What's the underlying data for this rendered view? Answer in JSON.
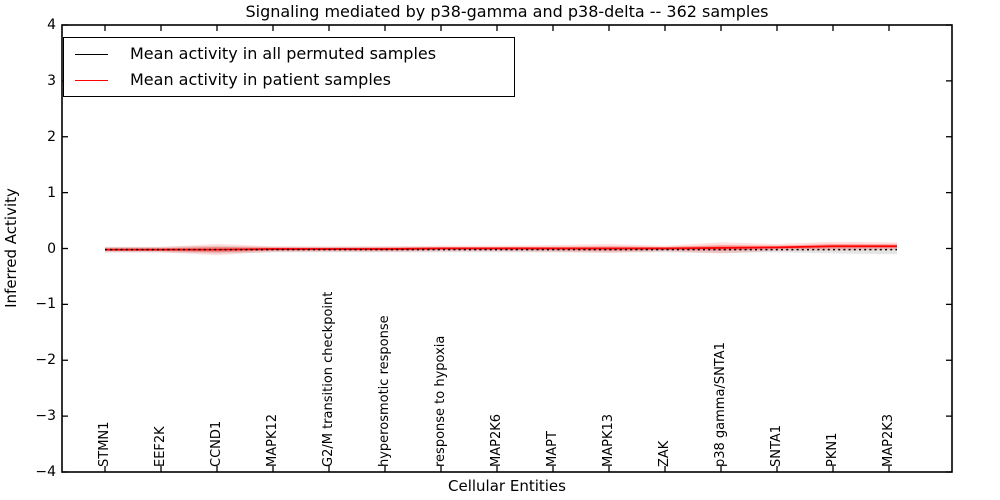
{
  "chart_data": {
    "type": "line",
    "title": "Signaling mediated by p38-gamma and p38-delta -- 362 samples",
    "xlabel": "Cellular Entities",
    "ylabel": "Inferred Activity",
    "ylim": [
      -4,
      4
    ],
    "yticks": [
      4,
      3,
      2,
      1,
      0,
      -1,
      -2,
      -3,
      -4
    ],
    "ytick_labels": [
      "4",
      "3",
      "2",
      "1",
      "0",
      "−1",
      "−2",
      "−3",
      "−4"
    ],
    "grid": false,
    "legend_position": "upper left",
    "categories": [
      "STMN1",
      "EEF2K",
      "CCND1",
      "MAPK12",
      "G2/M transition checkpoint",
      "hyperosmotic response",
      "response to hypoxia",
      "MAP2K6",
      "MAPT",
      "MAPK13",
      "ZAK",
      "p38 gamma/SNTA1",
      "SNTA1",
      "PKN1",
      "MAP2K3"
    ],
    "series": [
      {
        "name": "Mean activity in all permuted samples",
        "color": "#000000",
        "line_style": "dotted",
        "values": [
          -0.02,
          -0.02,
          -0.02,
          -0.02,
          -0.02,
          -0.02,
          -0.02,
          -0.02,
          -0.02,
          -0.02,
          -0.02,
          -0.02,
          -0.02,
          -0.02,
          -0.02
        ],
        "band_half_width": [
          0.05,
          0.05,
          0.07,
          0.05,
          0.05,
          0.05,
          0.05,
          0.05,
          0.05,
          0.05,
          0.05,
          0.06,
          0.05,
          0.07,
          0.08
        ],
        "band_color": "rgba(0,0,0,0.10)"
      },
      {
        "name": "Mean activity in patient samples",
        "color": "#ff0000",
        "line_style": "solid",
        "values": [
          -0.02,
          -0.02,
          -0.02,
          -0.01,
          -0.01,
          -0.01,
          0.0,
          0.0,
          0.0,
          0.0,
          0.0,
          0.01,
          0.02,
          0.04,
          0.04
        ],
        "band_half_width": [
          0.05,
          0.05,
          0.1,
          0.05,
          0.045,
          0.05,
          0.05,
          0.05,
          0.06,
          0.08,
          0.05,
          0.1,
          0.06,
          0.08,
          0.07
        ],
        "band_color": "rgba(255,0,0,0.13)",
        "band_inner_color": "rgba(255,0,0,0.30)"
      }
    ]
  }
}
